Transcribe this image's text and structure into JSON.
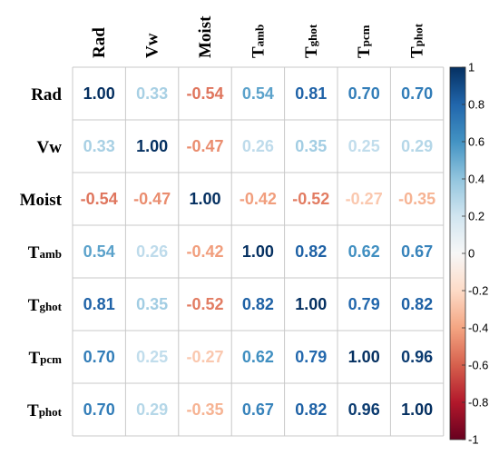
{
  "chart_data": {
    "type": "heatmap",
    "subtype": "correlation-matrix",
    "row_labels": [
      {
        "main": "Rad",
        "sub": ""
      },
      {
        "main": "Vw",
        "sub": ""
      },
      {
        "main": "Moist",
        "sub": ""
      },
      {
        "main": "T",
        "sub": "amb"
      },
      {
        "main": "T",
        "sub": "ghot"
      },
      {
        "main": "T",
        "sub": "pcm"
      },
      {
        "main": "T",
        "sub": "phot"
      }
    ],
    "col_labels": [
      {
        "main": "Rad",
        "sub": ""
      },
      {
        "main": "Vw",
        "sub": ""
      },
      {
        "main": "Moist",
        "sub": ""
      },
      {
        "main": "T",
        "sub": "amb"
      },
      {
        "main": "T",
        "sub": "ghot"
      },
      {
        "main": "T",
        "sub": "pcm"
      },
      {
        "main": "T",
        "sub": "phot"
      }
    ],
    "values": [
      [
        1.0,
        0.33,
        -0.54,
        0.54,
        0.81,
        0.7,
        0.7
      ],
      [
        0.33,
        1.0,
        -0.47,
        0.26,
        0.35,
        0.25,
        0.29
      ],
      [
        -0.54,
        -0.47,
        1.0,
        -0.42,
        -0.52,
        -0.27,
        -0.35
      ],
      [
        0.54,
        0.26,
        -0.42,
        1.0,
        0.82,
        0.62,
        0.67
      ],
      [
        0.81,
        0.35,
        -0.52,
        0.82,
        1.0,
        0.79,
        0.82
      ],
      [
        0.7,
        0.25,
        -0.27,
        0.62,
        0.79,
        1.0,
        0.96
      ],
      [
        0.7,
        0.29,
        -0.35,
        0.67,
        0.82,
        0.96,
        1.0
      ]
    ],
    "value_range": [
      -1,
      1
    ],
    "colorbar_ticks": [
      "1",
      "0.8",
      "0.6",
      "0.4",
      "0.2",
      "0",
      "-0.2",
      "-0.4",
      "-0.6",
      "-0.8",
      "-1"
    ],
    "colorscale": {
      "negative_end": "#67001F",
      "neutral": "#F7F7F7",
      "positive_end": "#053061"
    },
    "grid": true,
    "legend_position": "right"
  }
}
